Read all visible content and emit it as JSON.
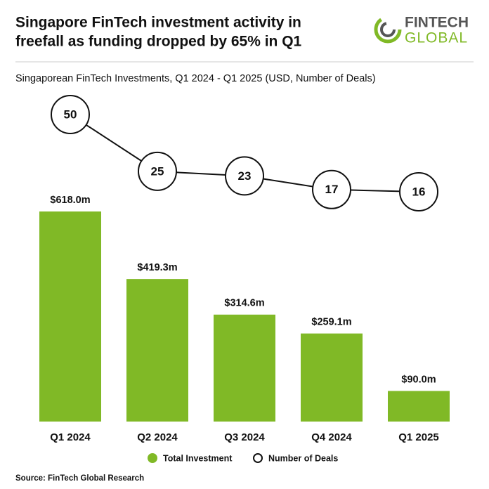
{
  "chart_data": {
    "type": "bar",
    "title": [
      "Singapore FinTech investment activity in",
      "freefall as funding dropped by 65% in Q1"
    ],
    "subtitle": "Singaporean FinTech Investments, Q1 2024 - Q1 2025 (USD, Number of Deals)",
    "source": "Source: FinTech Global Research",
    "logo": [
      "FINTECH",
      "GLOBAL"
    ],
    "categories": [
      "Q1 2024",
      "Q2 2024",
      "Q3 2024",
      "Q4 2024",
      "Q1 2025"
    ],
    "series": [
      {
        "name": "Total Investment",
        "type": "bar",
        "color": "#80b926",
        "values": [
          618.0,
          419.3,
          314.6,
          259.1,
          90.0
        ],
        "value_labels": [
          "$618.0m",
          "$419.3m",
          "$314.6m",
          "$259.1m",
          "$90.0m"
        ]
      },
      {
        "name": "Number of Deals",
        "type": "line",
        "color": "#111111",
        "values": [
          50,
          25,
          23,
          17,
          16
        ]
      }
    ]
  }
}
